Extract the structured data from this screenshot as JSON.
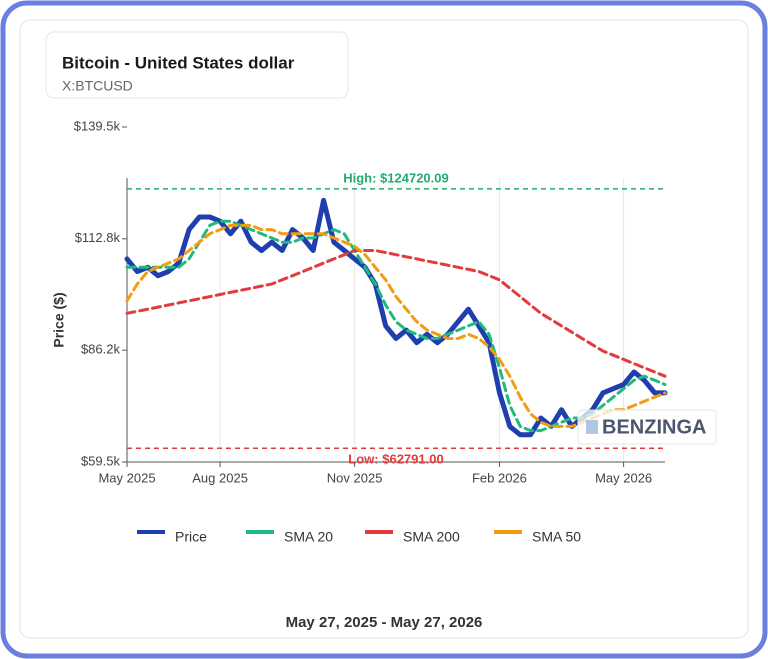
{
  "chart_data": {
    "type": "line",
    "title": "Bitcoin - United States dollar",
    "subtitle": "X:BTCUSD",
    "y_label": "Price ($)",
    "footer": "May 27, 2025 - May 27, 2026",
    "watermark": "BENZINGA",
    "categories": [
      "May 2025",
      null,
      null,
      null,
      null,
      null,
      null,
      null,
      null,
      "Aug 2025",
      null,
      null,
      null,
      null,
      null,
      null,
      null,
      null,
      null,
      null,
      null,
      null,
      "Nov 2025",
      null,
      null,
      null,
      null,
      null,
      null,
      null,
      null,
      null,
      null,
      null,
      null,
      null,
      "Feb 2026",
      null,
      null,
      null,
      null,
      null,
      null,
      null,
      null,
      null,
      null,
      null,
      "May 2026",
      null,
      null,
      null,
      null
    ],
    "ylim": [
      59500,
      139500
    ],
    "yticks": [
      {
        "value": 59500,
        "label": "$59.5k"
      },
      {
        "value": 86200,
        "label": "$86.2k"
      },
      {
        "value": 112800,
        "label": "$112.8k"
      },
      {
        "value": 139500,
        "label": "$139.5k"
      }
    ],
    "annotations": [
      {
        "label": "High: $124720.09",
        "value": 124720.09,
        "color": "#1fae6e"
      },
      {
        "label": "Low: $62791.00",
        "value": 62791.0,
        "color": "#e23b3b"
      }
    ],
    "series": [
      {
        "name": "Price",
        "color": "#1f3fae",
        "values": [
          108000,
          105000,
          106000,
          104000,
          105000,
          107000,
          115000,
          118000,
          118000,
          117000,
          114000,
          117000,
          112000,
          110000,
          112000,
          110000,
          115000,
          113000,
          110000,
          122000,
          112000,
          110000,
          108000,
          106000,
          102000,
          92000,
          89000,
          91000,
          88000,
          90000,
          88000,
          90000,
          93000,
          96000,
          92000,
          88000,
          76000,
          68000,
          66000,
          66000,
          70000,
          68000,
          72000,
          68000,
          70000,
          72000,
          76000,
          77000,
          78000,
          81000,
          79000,
          76000,
          76000
        ]
      },
      {
        "name": "SMA 20",
        "color": "#1fba7e",
        "values": [
          106000,
          106000,
          106000,
          106000,
          106000,
          106000,
          108000,
          112000,
          116000,
          117000,
          117000,
          116000,
          115000,
          114000,
          113000,
          112000,
          112000,
          113000,
          113000,
          114000,
          115000,
          114000,
          110000,
          106000,
          102000,
          97000,
          93000,
          91000,
          90000,
          89000,
          89000,
          90000,
          91000,
          92000,
          93000,
          90000,
          82000,
          73000,
          68000,
          67000,
          67000,
          68000,
          69000,
          70000,
          70000,
          71000,
          73000,
          75000,
          77000,
          79000,
          80000,
          79000,
          78000
        ]
      },
      {
        "name": "SMA 200",
        "color": "#e23b3b",
        "values": [
          95000,
          95500,
          96000,
          96500,
          97000,
          97500,
          98000,
          98500,
          99000,
          99500,
          100000,
          100500,
          101000,
          101500,
          102000,
          103000,
          104000,
          105000,
          106000,
          107000,
          108000,
          109000,
          110000,
          110000,
          110000,
          109500,
          109000,
          108500,
          108000,
          107500,
          107000,
          106500,
          106000,
          105500,
          105000,
          104000,
          103000,
          101000,
          99000,
          97000,
          95000,
          93500,
          92000,
          90500,
          89000,
          87500,
          86000,
          85000,
          84000,
          83000,
          82000,
          81000,
          80000
        ]
      },
      {
        "name": "SMA 50",
        "color": "#f39c12",
        "values": [
          98000,
          102000,
          105000,
          106000,
          107000,
          108000,
          110000,
          112000,
          114000,
          115000,
          116000,
          116000,
          116000,
          115000,
          115000,
          114000,
          114000,
          114000,
          114000,
          114000,
          113000,
          112000,
          111000,
          109000,
          106000,
          103000,
          99000,
          96000,
          93000,
          91000,
          90000,
          89000,
          89000,
          90000,
          89000,
          87000,
          84000,
          80000,
          75000,
          71000,
          69000,
          68000,
          68000,
          68000,
          69000,
          70000,
          71000,
          72000,
          72000,
          73000,
          74000,
          75000,
          76000
        ]
      }
    ]
  }
}
